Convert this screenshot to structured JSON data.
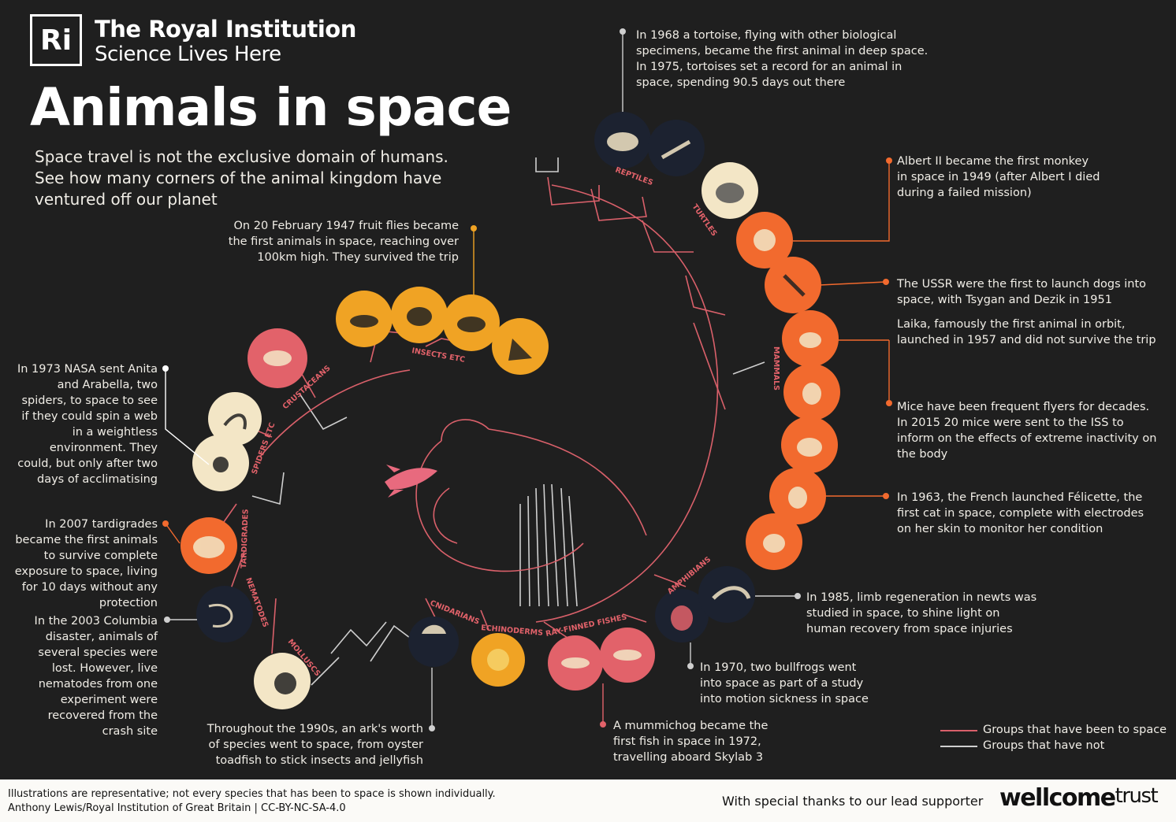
{
  "header": {
    "logo_mark": "Ri",
    "brand_line1": "The Royal Institution",
    "brand_line2": "Science Lives Here",
    "title": "Animals in space",
    "subtitle": "Space travel is not the exclusive domain of humans. See how many corners of the animal kingdom have ventured off our planet"
  },
  "annotations": {
    "fruit_flies": "On 20 February 1947 fruit flies became the first animals in space, reaching over 100km high. They survived the trip",
    "tortoise": "In 1968 a tortoise, flying with other biological specimens, became the first animal in deep space. In 1975, tortoises set a record for an animal in space, spending 90.5 days out there",
    "monkey": "Albert II became the first monkey in space in 1949 (after Albert I died during a failed mission)",
    "dogs_1": "The USSR were the first to launch dogs into space, with Tsygan and Dezik in 1951",
    "dogs_2": "Laika, famously the first animal in orbit, launched in 1957 and did not survive the trip",
    "mice": "Mice have been frequent flyers for decades. In 2015 20 mice were sent to the ISS to inform on the effects of extreme inactivity on the body",
    "cat": "In 1963, the French launched Félicette, the first cat in space, complete with electrodes on her skin to monitor her condition",
    "newts": "In 1985, limb regeneration in newts was studied in space, to shine light on human recovery from space injuries",
    "bullfrogs": "In 1970, two bullfrogs went into space as part of a study into motion sickness in space",
    "mummichog": "A mummichog became the first fish in space in 1972, travelling aboard Skylab 3",
    "ark_1990s": "Throughout the 1990s, an ark's worth of species went to space, from oyster toadfish to stick insects and jellyfish",
    "spiders": "In 1973 NASA sent Anita and Arabella, two spiders, to space to see if they could spin a web in a weightless environment. They could, but only after two days of acclimatising",
    "tardigrades": "In 2007 tardigrades became the first animals to survive complete exposure to space, living for 10 days without any protection",
    "nematodes": "In the 2003 Columbia disaster, animals of several species were lost. However, live nematodes from one experiment were recovered from the crash site"
  },
  "groups": {
    "reptiles": "REPTILES",
    "turtles": "TURTLES",
    "mammals": "MAMMALS",
    "amphibians": "AMPHIBIANS",
    "ray_finned": "RAY-FINNED FISHES",
    "echinoderms": "ECHINODERMS",
    "cnidarians": "CNIDARIANS",
    "molluscs": "MOLLUSCS",
    "nematodes": "NEMATODES",
    "tardigrades": "TARDIGRADES",
    "spiders": "SPIDERS ETC",
    "crustaceans": "CRUSTACEANS",
    "insects": "INSECTS ETC"
  },
  "legend": {
    "been": "Groups that have been to space",
    "not": "Groups that have not",
    "been_color": "#d9606a",
    "not_color": "#cfcfcf"
  },
  "footer": {
    "note": "Illustrations are representative; not every species that has been to space is shown individually.",
    "credit": "Anthony Lewis/Royal Institution of Great Britain | CC-BY-NC-SA-4.0",
    "thanks": "With special thanks to our lead supporter",
    "sponsor_bold": "wellcome",
    "sponsor_light": "trust"
  },
  "colors": {
    "background": "#1f1f1f",
    "orange": "#f26a2e",
    "amber": "#f0a324",
    "pink": "#e2626a",
    "cream": "#f3e6c6",
    "navy": "#1c2230",
    "line_space": "#d9606a",
    "line_none": "#cfcfcf"
  }
}
